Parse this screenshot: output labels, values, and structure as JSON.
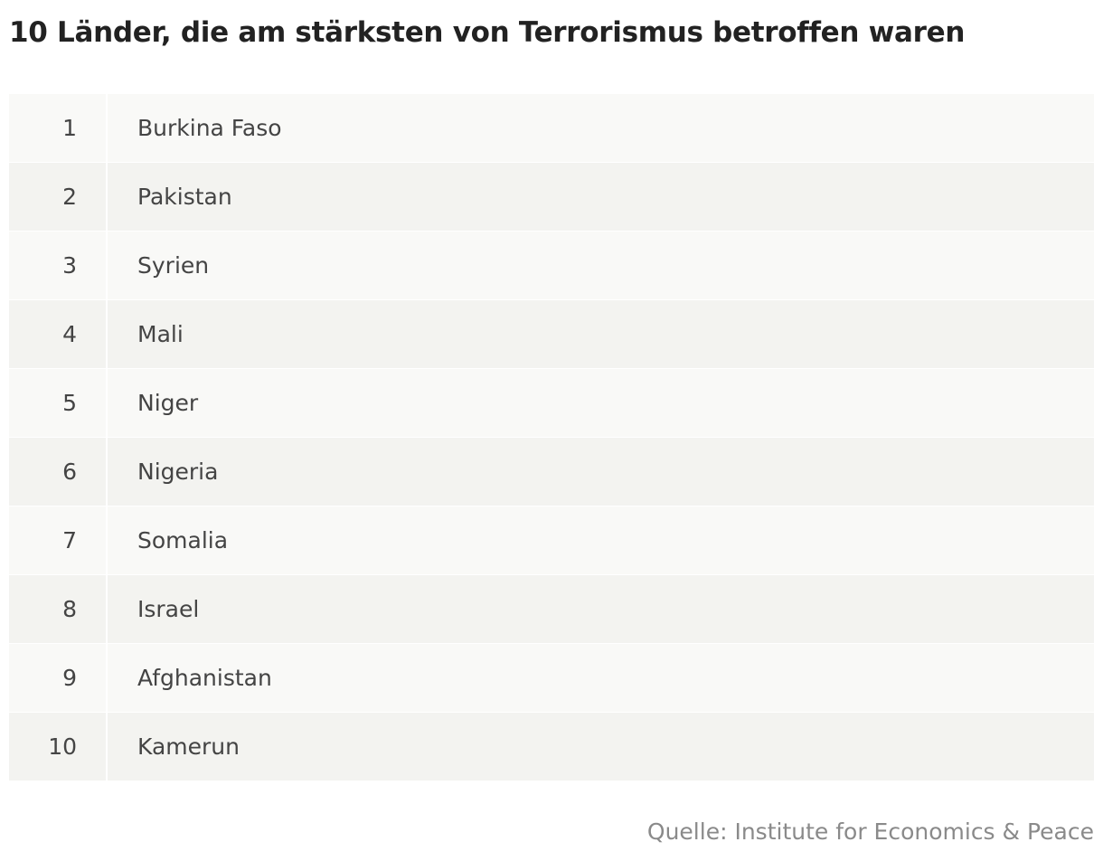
{
  "title": "10 Länder, die am stärksten von Terrorismus betroffen waren",
  "source": "Quelle: Institute for Economics & Peace",
  "chart_data": {
    "type": "table",
    "title": "10 Länder, die am stärksten von Terrorismus betroffen waren",
    "columns": [
      "",
      ""
    ],
    "rows": [
      [
        "1",
        "Burkina Faso"
      ],
      [
        "2",
        "Pakistan"
      ],
      [
        "3",
        "Syrien"
      ],
      [
        "4",
        "Mali"
      ],
      [
        "5",
        "Niger"
      ],
      [
        "6",
        "Nigeria"
      ],
      [
        "7",
        "Somalia"
      ],
      [
        "8",
        "Israel"
      ],
      [
        "9",
        "Afghanistan"
      ],
      [
        "10",
        "Kamerun"
      ]
    ],
    "source": "Quelle: Institute for Economics & Peace"
  }
}
